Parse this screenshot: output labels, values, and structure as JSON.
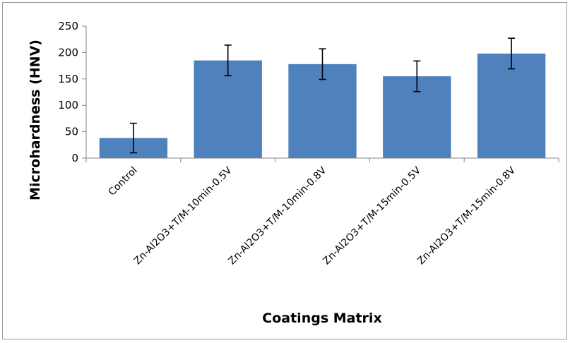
{
  "chart_data": {
    "type": "bar",
    "title": "",
    "xlabel": "Coatings Matrix",
    "ylabel": "Microhardness (HNV)",
    "categories": [
      "Control",
      "Zn-Al2O3+T/M-10min-0.5V",
      "Zn-Al2O3+T/M-10min-0.8V",
      "Zn-Al2O3+T/M-15min-0.5V",
      "Zn-Al2O3+T/M-15min-0.8V"
    ],
    "values": [
      38,
      185,
      178,
      155,
      198
    ],
    "error": [
      28,
      29,
      29,
      29,
      29
    ],
    "ylim": [
      0,
      250
    ],
    "yticks": [
      0,
      50,
      100,
      150,
      200,
      250
    ],
    "ytick_labels": [
      "0",
      "50",
      "100",
      "150",
      "200",
      "250"
    ],
    "grid": false,
    "legend": "none",
    "colors": {
      "bar": "#4f81bd",
      "axis": "#868686",
      "error": "#000000"
    }
  }
}
